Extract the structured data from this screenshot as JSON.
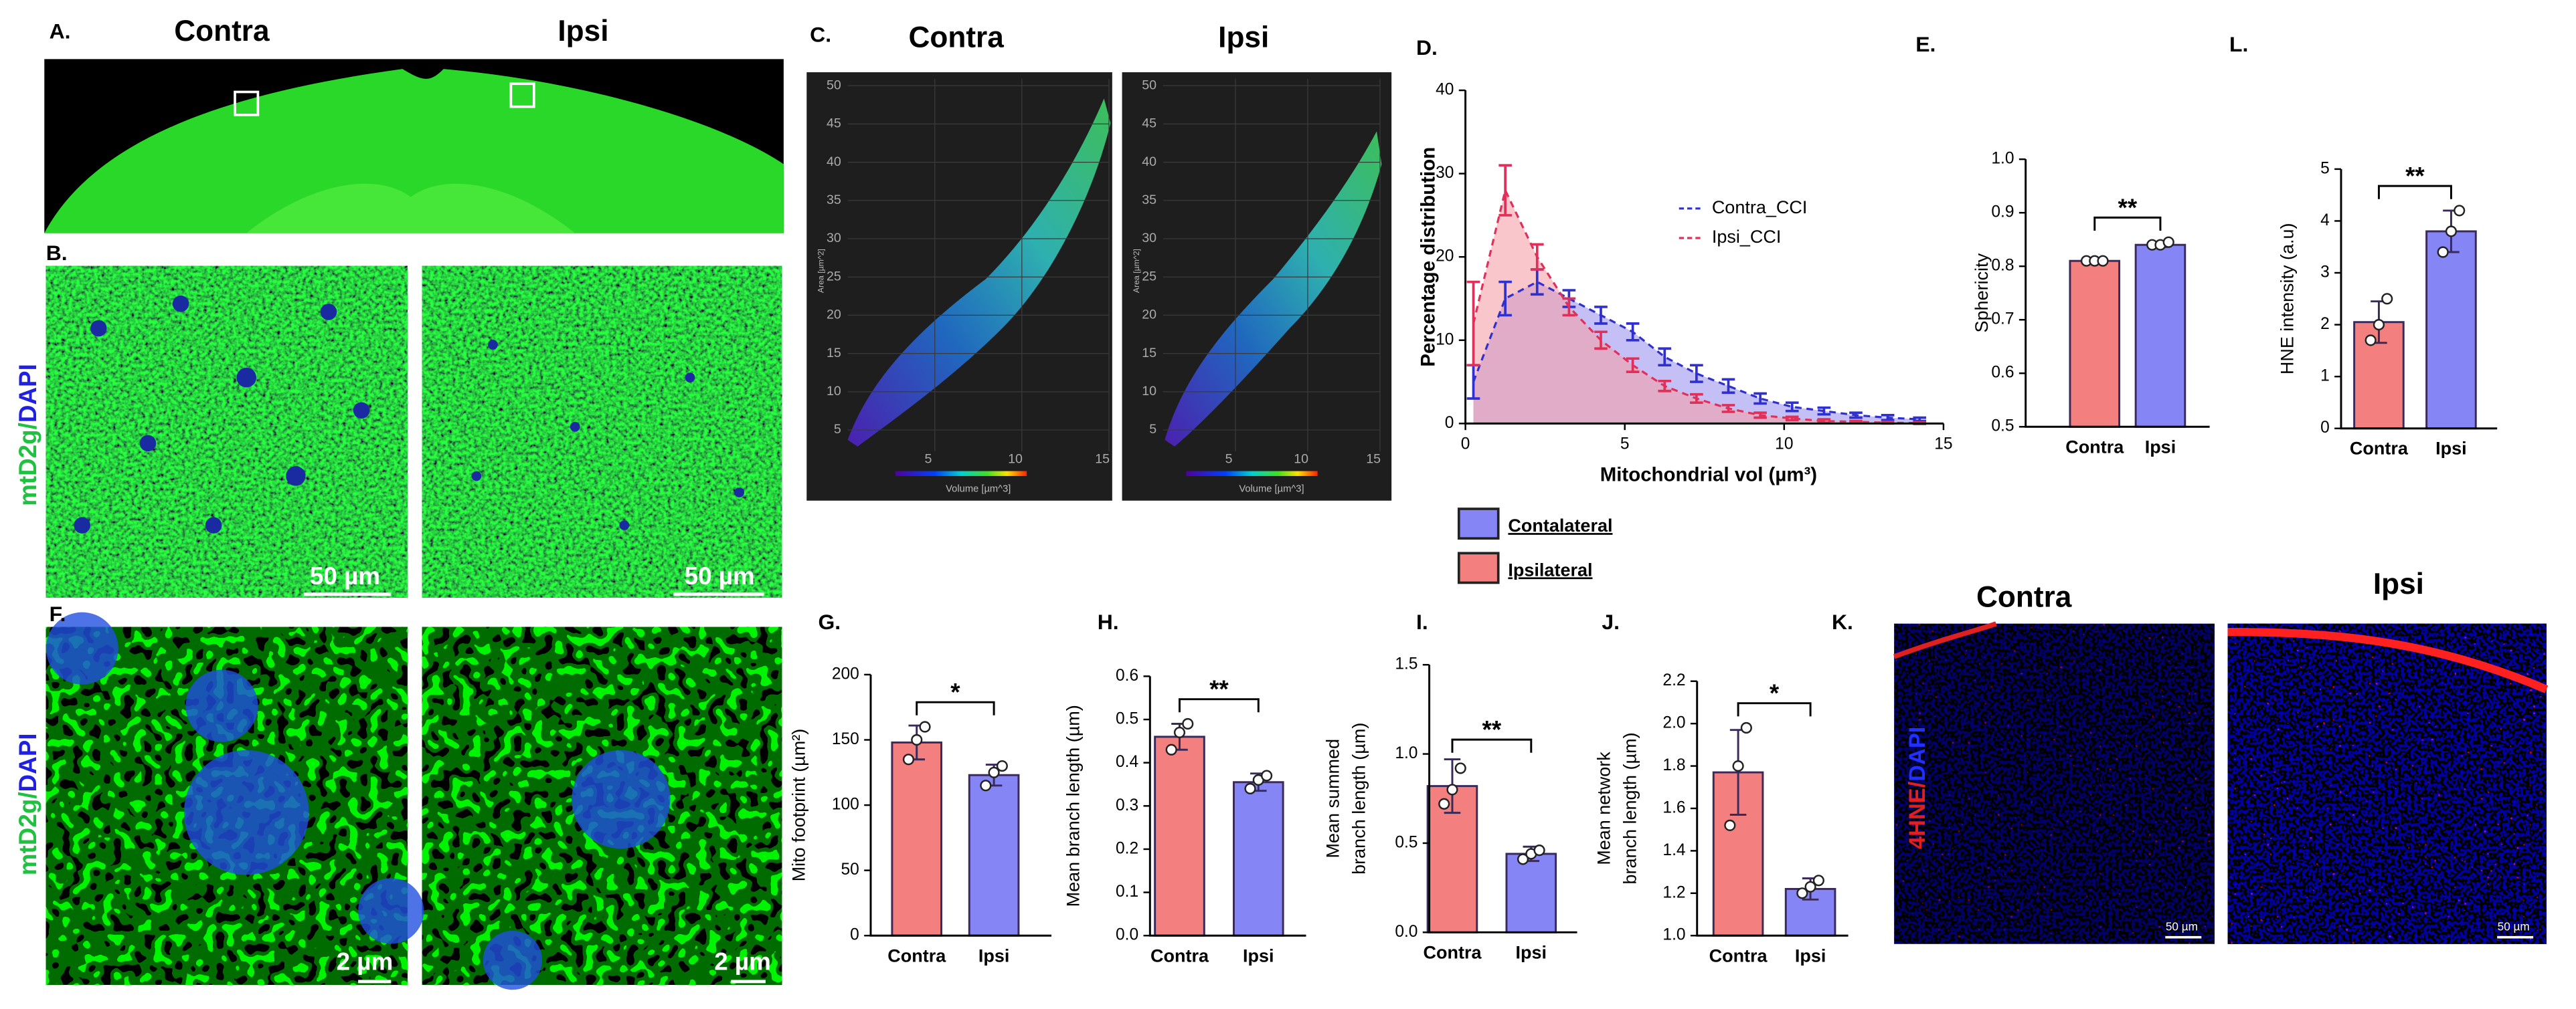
{
  "labels": {
    "A": "A.",
    "B": "B.",
    "C": "C.",
    "D": "D.",
    "E": "E.",
    "F": "F.",
    "G": "G.",
    "H": "H.",
    "I": "I.",
    "J": "J.",
    "K": "K.",
    "L": "L."
  },
  "image_titles": {
    "A": [
      "Contra",
      "Ipsi"
    ],
    "C": [
      "Contra",
      "Ipsi"
    ],
    "K": [
      "Contra",
      "Ipsi"
    ]
  },
  "stain_labels": {
    "B": [
      "mtD2g/",
      "DAPI"
    ],
    "F": [
      "mtD2g/",
      "DAPI"
    ],
    "K": [
      "4HNE/",
      "DAPI"
    ]
  },
  "scale_bars": {
    "B": [
      "50 µm",
      "50 µm"
    ],
    "F": [
      "2 µm",
      "2 µm"
    ],
    "K": [
      "50 µm",
      "50 µm"
    ]
  },
  "legend_boxes": [
    {
      "name": "Contalateral",
      "color": "#8585f5"
    },
    {
      "name": "Ipsilateral",
      "color": "#f47f7f"
    }
  ],
  "chart_data": [
    {
      "type": "scatter",
      "xlabel": "Volume [µm^3]",
      "ylabel": "Area [µm^2]",
      "xlim": [
        0,
        15
      ],
      "xticks": [
        5,
        10,
        15
      ],
      "ylim": [
        2.2,
        50.9
      ],
      "yticks": [
        5,
        10,
        15,
        20,
        25,
        30,
        35,
        40,
        45,
        50
      ]
    },
    {
      "type": "scatter",
      "xlabel": "Volume [µm^3]",
      "ylabel": "Area [µm^2]",
      "xlim": [
        0,
        15
      ],
      "xticks": [
        5,
        10,
        15
      ],
      "ylim": [
        2.2,
        50.9
      ],
      "yticks": [
        5,
        10,
        15,
        20,
        25,
        30,
        35,
        40,
        45,
        50
      ]
    },
    {
      "type": "line",
      "xlabel": "Mitochondrial vol (µm³)",
      "ylabel": "Percentage distribution",
      "xlim": [
        0,
        15
      ],
      "xticks": [
        0,
        5,
        10,
        15
      ],
      "ylim": [
        0,
        40
      ],
      "yticks": [
        0,
        10,
        20,
        30,
        40
      ],
      "x": [
        0.25,
        1.25,
        2.25,
        3.25,
        4.25,
        5.25,
        6.25,
        7.25,
        8.25,
        9.25,
        10.25,
        11.25,
        12.25,
        13.25,
        14.25
      ],
      "series": [
        {
          "name": "Contra_CCI",
          "color": "#3030d0",
          "fill": "#9c94ee",
          "values": [
            5,
            15,
            17,
            15,
            13,
            11,
            8,
            6,
            4.5,
            3,
            2,
            1.5,
            1,
            0.7,
            0.5
          ],
          "errors": [
            2,
            2,
            1.5,
            1,
            1,
            1,
            1,
            1,
            0.8,
            0.6,
            0.5,
            0.4,
            0.3,
            0.3,
            0.2
          ]
        },
        {
          "name": "Ipsi_CCI",
          "color": "#e0305a",
          "fill": "#f4a0a8",
          "values": [
            12,
            28,
            20,
            14,
            10,
            7,
            4.5,
            3,
            1.8,
            1,
            0.6,
            0.3,
            0.2,
            0.1,
            0.05
          ],
          "errors": [
            5,
            3,
            1.5,
            1,
            1,
            0.8,
            0.6,
            0.5,
            0.4,
            0.3,
            0.2,
            0.2,
            0.1,
            0.1,
            0.1
          ]
        }
      ]
    },
    {
      "type": "bar",
      "ylabel": "Sphericity",
      "categories": [
        "Contra",
        "Ipsi"
      ],
      "colors": [
        "#f47f7f",
        "#8585f5"
      ],
      "values": [
        0.81,
        0.84
      ],
      "errors": [
        0.003,
        0.004
      ],
      "points": [
        [
          0.81,
          0.81,
          0.81
        ],
        [
          0.84,
          0.84,
          0.845
        ]
      ],
      "significance": "**",
      "ylim": [
        0.5,
        1
      ],
      "yticks": [
        0.5,
        0.6,
        0.7,
        0.8,
        0.9,
        {
          "value": 1,
          "label": "1.0"
        }
      ]
    },
    {
      "type": "bar",
      "ylabel": "HNE intensity (a.u)",
      "categories": [
        "Contra",
        "Ipsi"
      ],
      "colors": [
        "#f47f7f",
        "#8585f5"
      ],
      "values": [
        2.05,
        3.8
      ],
      "errors": [
        0.4,
        0.4
      ],
      "points": [
        [
          1.7,
          2.0,
          2.5
        ],
        [
          3.4,
          3.8,
          4.2
        ]
      ],
      "significance": "**",
      "ylim": [
        0,
        5
      ],
      "yticks": [
        0,
        1,
        2,
        3,
        4,
        5
      ]
    },
    {
      "type": "bar",
      "ylabel": "Mito footprint (µm²)",
      "categories": [
        "Contra",
        "Ipsi"
      ],
      "colors": [
        "#f47f7f",
        "#8585f5"
      ],
      "values": [
        148,
        123
      ],
      "errors": [
        13,
        8
      ],
      "points": [
        [
          135,
          150,
          160
        ],
        [
          115,
          125,
          130
        ]
      ],
      "significance": "*",
      "ylim": [
        0,
        200
      ],
      "yticks": [
        0,
        50,
        100,
        150,
        200
      ]
    },
    {
      "type": "bar",
      "ylabel": "Mean branch length (µm)",
      "categories": [
        "Contra",
        "Ipsi"
      ],
      "colors": [
        "#f47f7f",
        "#8585f5"
      ],
      "values": [
        0.46,
        0.355
      ],
      "errors": [
        0.03,
        0.02
      ],
      "points": [
        [
          0.43,
          0.47,
          0.49
        ],
        [
          0.34,
          0.36,
          0.37
        ]
      ],
      "significance": "**",
      "ylim": [
        0,
        0.6
      ],
      "yticks": [
        {
          "value": 0,
          "label": "0.0"
        },
        0.1,
        0.2,
        0.3,
        0.4,
        0.5,
        0.6
      ]
    },
    {
      "type": "bar",
      "ylabel": [
        "Mean summed",
        "branch length (µm)"
      ],
      "categories": [
        "Contra",
        "Ipsi"
      ],
      "colors": [
        "#f47f7f",
        "#8585f5"
      ],
      "values": [
        0.82,
        0.44
      ],
      "errors": [
        0.15,
        0.04
      ],
      "points": [
        [
          0.72,
          0.8,
          0.92
        ],
        [
          0.41,
          0.44,
          0.46
        ]
      ],
      "significance": "**",
      "ylim": [
        0,
        1.5
      ],
      "yticks": [
        {
          "value": 0,
          "label": "0.0"
        },
        0.5,
        {
          "value": 1,
          "label": "1.0"
        },
        1.5
      ]
    },
    {
      "type": "bar",
      "ylabel": [
        "Mean network",
        "branch length (µm)"
      ],
      "categories": [
        "Contra",
        "Ipsi"
      ],
      "colors": [
        "#f47f7f",
        "#8585f5"
      ],
      "values": [
        1.77,
        1.22
      ],
      "errors": [
        0.2,
        0.05
      ],
      "points": [
        [
          1.52,
          1.8,
          1.98
        ],
        [
          1.2,
          1.23,
          1.26
        ]
      ],
      "significance": "*",
      "ylim": [
        1,
        2.2
      ],
      "yticks": [
        {
          "value": 1,
          "label": "1.0"
        },
        1.2,
        1.4,
        1.6,
        1.8,
        {
          "value": 2,
          "label": "2.0"
        },
        2.2
      ]
    }
  ]
}
